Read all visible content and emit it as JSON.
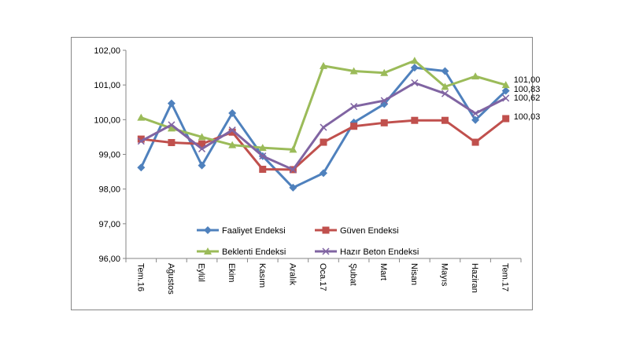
{
  "chart_data": {
    "type": "line",
    "categories": [
      "Tem.16",
      "Ağustos",
      "Eylül",
      "Ekim",
      "Kasım",
      "Aralık",
      "Oca.17",
      "Şubat",
      "Mart",
      "Nisan",
      "Mayıs",
      "Haziran",
      "Tem.17"
    ],
    "ylim": [
      96,
      102
    ],
    "yticks": [
      "96,00",
      "97,00",
      "98,00",
      "99,00",
      "100,00",
      "101,00",
      "102,00"
    ],
    "grid": false,
    "legend_position": "bottom-inside",
    "series": [
      {
        "name": "Faaliyet Endeksi",
        "color": "#4f81bd",
        "marker": "diamond",
        "values": [
          98.62,
          100.47,
          98.68,
          100.19,
          98.95,
          98.04,
          98.46,
          99.92,
          100.45,
          101.5,
          101.4,
          99.99,
          100.83
        ],
        "end_label": "100,83"
      },
      {
        "name": "Güven Endeksi",
        "color": "#c0504d",
        "marker": "square",
        "values": [
          99.44,
          99.34,
          99.3,
          99.64,
          98.57,
          98.56,
          99.35,
          99.81,
          99.91,
          99.98,
          99.98,
          99.35,
          100.03
        ],
        "end_label": "100,03"
      },
      {
        "name": "Beklenti Endeksi",
        "color": "#9bbb59",
        "marker": "triangle",
        "values": [
          100.06,
          99.75,
          99.5,
          99.27,
          99.19,
          99.14,
          101.55,
          101.4,
          101.35,
          101.7,
          100.95,
          101.25,
          101.0
        ],
        "end_label": "101,00"
      },
      {
        "name": "Hazır Beton Endeksi",
        "color": "#8064a2",
        "marker": "x",
        "values": [
          99.38,
          99.85,
          99.16,
          99.7,
          98.95,
          98.56,
          99.78,
          100.38,
          100.55,
          101.06,
          100.75,
          100.18,
          100.62
        ],
        "end_label": "100,62"
      }
    ]
  }
}
